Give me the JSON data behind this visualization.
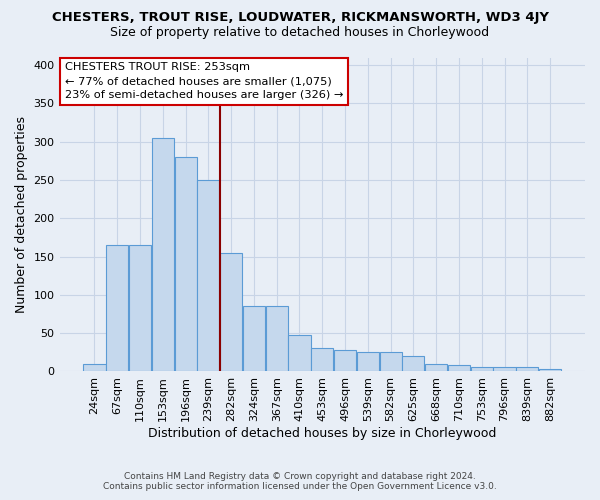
{
  "title": "CHESTERS, TROUT RISE, LOUDWATER, RICKMANSWORTH, WD3 4JY",
  "subtitle": "Size of property relative to detached houses in Chorleywood",
  "xlabel": "Distribution of detached houses by size in Chorleywood",
  "ylabel": "Number of detached properties",
  "footnote1": "Contains HM Land Registry data © Crown copyright and database right 2024.",
  "footnote2": "Contains public sector information licensed under the Open Government Licence v3.0.",
  "categories": [
    "24sqm",
    "67sqm",
    "110sqm",
    "153sqm",
    "196sqm",
    "239sqm",
    "282sqm",
    "324sqm",
    "367sqm",
    "410sqm",
    "453sqm",
    "496sqm",
    "539sqm",
    "582sqm",
    "625sqm",
    "668sqm",
    "710sqm",
    "753sqm",
    "796sqm",
    "839sqm",
    "882sqm"
  ],
  "heights": [
    10,
    165,
    165,
    305,
    280,
    250,
    155,
    85,
    85,
    48,
    30,
    28,
    25,
    25,
    20,
    10,
    8,
    6,
    6,
    6,
    3
  ],
  "bar_color": "#c5d8ed",
  "bar_edge_color": "#5b9bd5",
  "grid_color": "#c8d4e6",
  "annotation_line1": "CHESTERS TROUT RISE: 253sqm",
  "annotation_line2": "← 77% of detached houses are smaller (1,075)",
  "annotation_line3": "23% of semi-detached houses are larger (326) →",
  "vline_color": "#8b0000",
  "vline_position": 5.5,
  "annotation_box_facecolor": "#ffffff",
  "annotation_box_edgecolor": "#cc0000",
  "ylim_max": 410,
  "yticks": [
    0,
    50,
    100,
    150,
    200,
    250,
    300,
    350,
    400
  ],
  "background_color": "#e8eef6",
  "title_fontsize": 9.5,
  "subtitle_fontsize": 9.0,
  "ylabel_fontsize": 9,
  "xlabel_fontsize": 9,
  "tick_fontsize": 8,
  "footnote_fontsize": 6.5
}
